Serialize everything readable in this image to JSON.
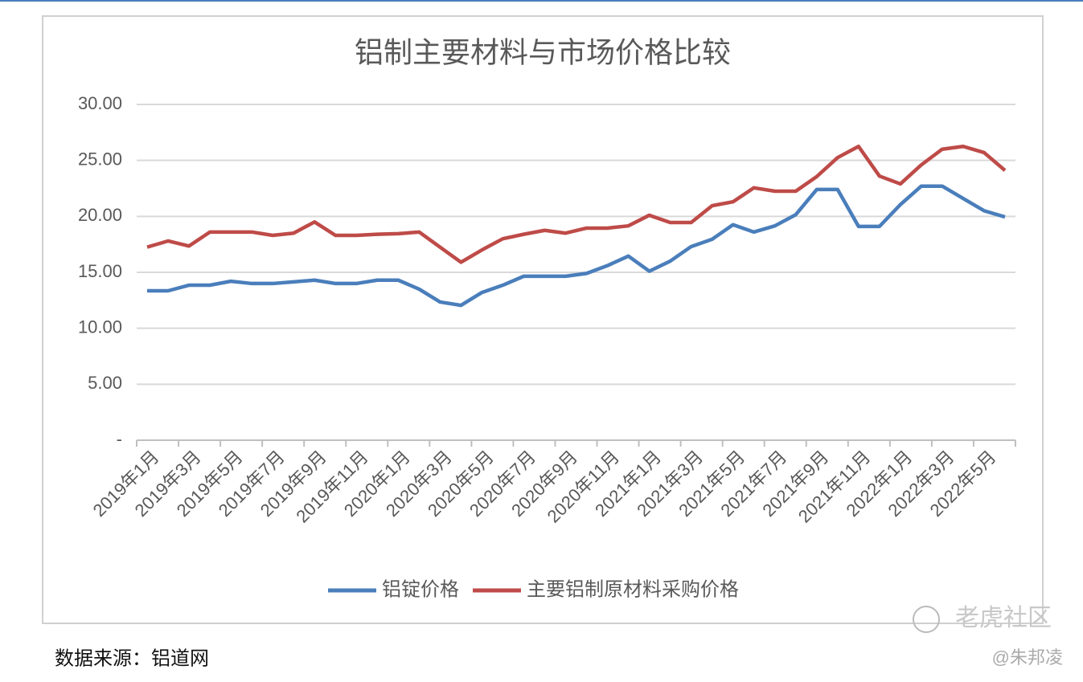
{
  "chart_data": {
    "type": "line",
    "title": "铝制主要材料与市场价格比较",
    "categories": [
      "2019年1月",
      null,
      "2019年3月",
      null,
      "2019年5月",
      null,
      "2019年7月",
      null,
      "2019年9月",
      null,
      "2019年11月",
      null,
      "2020年1月",
      null,
      "2020年3月",
      null,
      "2020年5月",
      null,
      "2020年7月",
      null,
      "2020年9月",
      null,
      "2020年11月",
      null,
      "2021年1月",
      null,
      "2021年3月",
      null,
      "2021年5月",
      null,
      "2021年7月",
      null,
      "2021年9月",
      null,
      "2021年11月",
      null,
      "2022年1月",
      null,
      "2022年3月",
      null,
      "2022年5月",
      null
    ],
    "series": [
      {
        "name": "铝锭价格",
        "color": "#4a7ebb",
        "values": [
          13.35,
          13.35,
          13.85,
          13.85,
          14.2,
          14.0,
          14.0,
          14.15,
          14.3,
          14.0,
          14.0,
          14.3,
          14.3,
          13.5,
          12.35,
          12.05,
          13.2,
          13.85,
          14.65,
          14.65,
          14.65,
          14.9,
          15.6,
          16.45,
          15.1,
          16.0,
          17.3,
          17.95,
          19.25,
          18.6,
          19.15,
          20.15,
          22.4,
          22.4,
          19.1,
          19.1,
          21.05,
          22.7,
          22.7,
          21.6,
          20.5,
          19.95
        ]
      },
      {
        "name": "主要铝制原材料采购价格",
        "color": "#be4b48",
        "values": [
          17.25,
          17.8,
          17.35,
          18.6,
          18.6,
          18.6,
          18.3,
          18.5,
          19.5,
          18.3,
          18.3,
          18.4,
          18.45,
          18.6,
          17.25,
          15.9,
          17.0,
          18.0,
          18.4,
          18.75,
          18.5,
          18.95,
          18.95,
          19.15,
          20.1,
          19.45,
          19.45,
          20.95,
          21.3,
          22.55,
          22.25,
          22.25,
          23.55,
          25.25,
          26.25,
          23.6,
          22.9,
          24.6,
          26.0,
          26.25,
          25.7,
          24.1
        ]
      }
    ],
    "ylim": [
      0,
      30
    ],
    "yticks": [
      {
        "value": 0,
        "label": "-"
      },
      {
        "value": 5,
        "label": "5.00"
      },
      {
        "value": 10,
        "label": "10.00"
      },
      {
        "value": 15,
        "label": "15.00"
      },
      {
        "value": 20,
        "label": "20.00"
      },
      {
        "value": 25,
        "label": "25.00"
      },
      {
        "value": 30,
        "label": "30.00"
      }
    ],
    "grid": true,
    "legend": "bottom"
  },
  "source": "数据来源：铝道网",
  "watermark": "老虎社区",
  "author": "@朱邦凌"
}
